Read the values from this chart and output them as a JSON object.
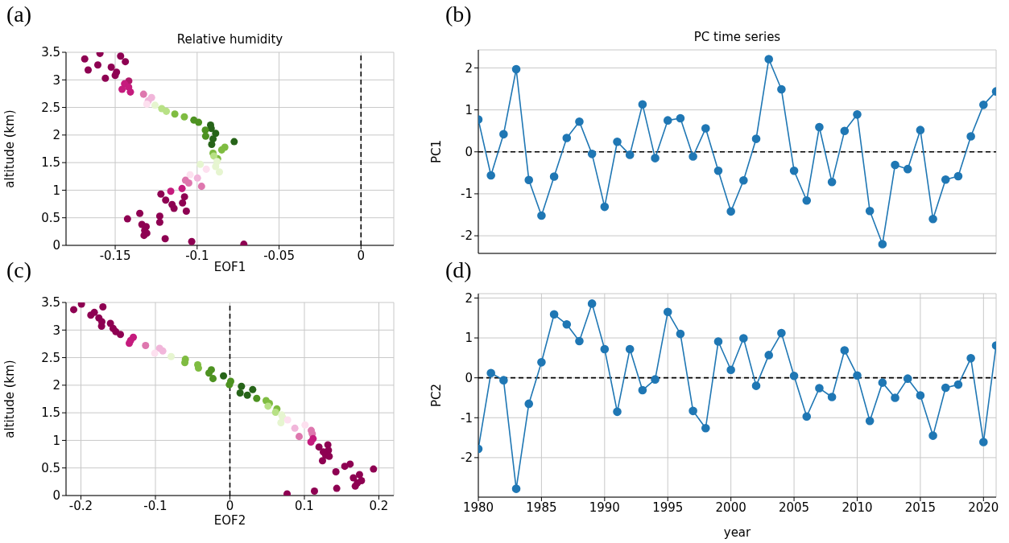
{
  "chart_data": [
    {
      "type": "scatter",
      "title": "Relative humidity",
      "xlabel": "EOF1",
      "ylabel": "altitude (km)",
      "annotations": [
        "(a)"
      ],
      "xlim": [
        -0.18,
        0.02
      ],
      "xticks": [
        -0.15,
        -0.1,
        -0.05,
        0
      ],
      "ylim": [
        0,
        3.5
      ],
      "yticks": [
        0,
        0.5,
        1,
        1.5,
        2,
        2.5,
        3,
        3.5
      ],
      "grid": true,
      "marker": "circle",
      "ref_lines": [
        {
          "axis": "x",
          "value": 0,
          "color": "#000000",
          "line_style": "dashed"
        }
      ],
      "x": [
        -0.1686,
        -0.1593,
        -0.1467,
        -0.1438,
        -0.1606,
        -0.1665,
        -0.1524,
        -0.1492,
        -0.15,
        -0.156,
        -0.1417,
        -0.1443,
        -0.1418,
        -0.1458,
        -0.1407,
        -0.1327,
        -0.1278,
        -0.1298,
        -0.1307,
        -0.1257,
        -0.1216,
        -0.1188,
        -0.1136,
        -0.1078,
        -0.102,
        -0.0991,
        -0.0918,
        -0.0914,
        -0.095,
        -0.0887,
        -0.0948,
        -0.0903,
        -0.0911,
        -0.0774,
        -0.0831,
        -0.085,
        -0.0903,
        -0.0875,
        -0.0898,
        -0.0878,
        -0.0981,
        -0.0887,
        -0.0864,
        -0.0944,
        -0.1043,
        -0.0998,
        -0.1071,
        -0.1051,
        -0.0973,
        -0.1092,
        -0.1161,
        -0.1221,
        -0.1077,
        -0.1192,
        -0.1153,
        -0.1141,
        -0.1089,
        -0.1066,
        -0.135,
        -0.1425,
        -0.1228,
        -0.1228,
        -0.1337,
        -0.1311,
        -0.132,
        -0.1307,
        -0.1324,
        -0.1195,
        -0.1033,
        -0.0715
      ],
      "values": [
        3.38,
        3.48,
        3.43,
        3.33,
        3.27,
        3.18,
        3.23,
        3.14,
        3.08,
        3.03,
        2.98,
        2.93,
        2.87,
        2.83,
        2.78,
        2.74,
        2.68,
        2.62,
        2.56,
        2.54,
        2.48,
        2.43,
        2.38,
        2.33,
        2.27,
        2.23,
        2.18,
        2.12,
        2.09,
        2.03,
        1.98,
        1.93,
        1.83,
        1.88,
        1.78,
        1.73,
        1.67,
        1.57,
        1.62,
        1.52,
        1.47,
        1.43,
        1.33,
        1.38,
        1.28,
        1.22,
        1.18,
        1.13,
        1.07,
        1.03,
        0.98,
        0.93,
        0.88,
        0.82,
        0.74,
        0.67,
        0.77,
        0.62,
        0.58,
        0.48,
        0.53,
        0.42,
        0.38,
        0.34,
        0.27,
        0.22,
        0.18,
        0.12,
        0.07,
        0.02
      ],
      "colors": [
        "#8e0152",
        "#8e0152",
        "#8e0152",
        "#8e0152",
        "#8e0152",
        "#8e0152",
        "#8e0152",
        "#8e0152",
        "#8e0152",
        "#8e0152",
        "#b0186a",
        "#c51b7d",
        "#c51b7d",
        "#c51b7d",
        "#c51b7d",
        "#de77ae",
        "#f1b6da",
        "#f1b6da",
        "#fde0ef",
        "#e6f5d0",
        "#b8e186",
        "#b8e186",
        "#7fbc41",
        "#7fbc41",
        "#4d9221",
        "#4d9221",
        "#276419",
        "#276419",
        "#4d9221",
        "#276419",
        "#4d9221",
        "#276419",
        "#276419",
        "#276419",
        "#7fbc41",
        "#7fbc41",
        "#7fbc41",
        "#7fbc41",
        "#b8e186",
        "#e6f5d0",
        "#e6f5d0",
        "#e6f5d0",
        "#e6f5d0",
        "#fde0ef",
        "#fde0ef",
        "#f1b6da",
        "#de77ae",
        "#de77ae",
        "#de77ae",
        "#c51b7d",
        "#c51b7d",
        "#8e0152",
        "#8e0152",
        "#8e0152",
        "#8e0152",
        "#8e0152",
        "#8e0152",
        "#8e0152",
        "#8e0152",
        "#8e0152",
        "#8e0152",
        "#8e0152",
        "#8e0152",
        "#8e0152",
        "#8e0152",
        "#8e0152",
        "#8e0152",
        "#8e0152",
        "#8e0152",
        "#8e0152"
      ]
    },
    {
      "type": "line",
      "title": "PC time series",
      "ylabel": "PC1",
      "annotations": [
        "(b)"
      ],
      "xlim": [
        1980,
        2021
      ],
      "xticks": [
        1980,
        1985,
        1990,
        1995,
        2000,
        2005,
        2010,
        2015,
        2020
      ],
      "ylim": [
        -2.42,
        2.43
      ],
      "yticks": [
        -2,
        -1,
        0,
        1,
        2
      ],
      "tick_labels": "y",
      "grid": true,
      "marker": "circle",
      "line_style": "solid",
      "color": "#1f77b4",
      "ref_lines": [
        {
          "axis": "y",
          "value": 0,
          "color": "#000000",
          "line_style": "dashed"
        }
      ],
      "x": [
        1980,
        1981,
        1982,
        1983,
        1984,
        1985,
        1986,
        1987,
        1988,
        1989,
        1990,
        1991,
        1992,
        1993,
        1994,
        1995,
        1996,
        1997,
        1998,
        1999,
        2000,
        2001,
        2002,
        2003,
        2004,
        2005,
        2006,
        2007,
        2008,
        2009,
        2010,
        2011,
        2012,
        2013,
        2014,
        2015,
        2016,
        2017,
        2018,
        2019,
        2020,
        2021
      ],
      "values": [
        0.77,
        -0.56,
        0.42,
        1.97,
        -0.67,
        -1.52,
        -0.59,
        0.33,
        0.72,
        -0.05,
        -1.31,
        0.24,
        -0.07,
        1.13,
        -0.15,
        0.75,
        0.8,
        -0.11,
        0.56,
        -0.45,
        -1.42,
        -0.68,
        0.31,
        2.21,
        1.49,
        -0.45,
        -1.16,
        0.59,
        -0.72,
        0.5,
        0.89,
        -1.41,
        -2.2,
        -0.31,
        -0.41,
        0.52,
        -1.6,
        -0.66,
        -0.58,
        0.37,
        1.12,
        1.44
      ]
    },
    {
      "type": "scatter",
      "xlabel": "EOF2",
      "ylabel": "altitude (km)",
      "annotations": [
        "(c)"
      ],
      "xlim": [
        -0.22,
        0.22
      ],
      "xticks": [
        -0.2,
        -0.1,
        0,
        0.1,
        0.2
      ],
      "ylim": [
        0,
        3.5
      ],
      "yticks": [
        0,
        0.5,
        1,
        1.5,
        2,
        2.5,
        3,
        3.5
      ],
      "grid": true,
      "marker": "circle",
      "ref_lines": [
        {
          "axis": "x",
          "value": 0,
          "color": "#000000",
          "line_style": "dashed"
        }
      ],
      "x": [
        -0.2097,
        -0.1993,
        -0.1705,
        -0.1867,
        -0.182,
        -0.1759,
        -0.1719,
        -0.1723,
        -0.1604,
        -0.1568,
        -0.1532,
        -0.147,
        -0.1297,
        -0.1333,
        -0.1351,
        -0.1132,
        -0.0944,
        -0.0901,
        -0.1009,
        -0.0789,
        -0.0598,
        -0.0605,
        -0.0432,
        -0.0422,
        -0.0249,
        -0.0281,
        -0.0227,
        -0.0086,
        0.0011,
        -0.0007,
        0.0155,
        0.0306,
        0.0137,
        0.0234,
        0.036,
        0.0486,
        0.053,
        0.0512,
        0.0631,
        0.0613,
        0.0695,
        0.071,
        0.0685,
        0.0775,
        0.1009,
        0.0872,
        0.1092,
        0.1106,
        0.093,
        0.1117,
        0.1088,
        0.1315,
        0.1196,
        0.1323,
        0.1286,
        0.1333,
        0.1254,
        0.1243,
        0.1614,
        0.1423,
        0.1542,
        0.1928,
        0.174,
        0.1658,
        0.1766,
        0.1712,
        0.1683,
        0.1434,
        0.1135,
        0.0768
      ],
      "values": [
        3.37,
        3.47,
        3.42,
        3.27,
        3.32,
        3.22,
        3.15,
        3.07,
        3.12,
        3.03,
        2.97,
        2.92,
        2.87,
        2.81,
        2.76,
        2.72,
        2.67,
        2.62,
        2.58,
        2.52,
        2.47,
        2.41,
        2.37,
        2.31,
        2.28,
        2.22,
        2.12,
        2.17,
        2.07,
        2.01,
        1.98,
        1.92,
        1.86,
        1.82,
        1.76,
        1.72,
        1.67,
        1.62,
        1.57,
        1.51,
        1.46,
        1.41,
        1.32,
        1.37,
        1.28,
        1.22,
        1.18,
        1.12,
        1.07,
        1.03,
        0.97,
        0.92,
        0.88,
        0.82,
        0.73,
        0.71,
        0.79,
        0.63,
        0.57,
        0.43,
        0.53,
        0.48,
        0.38,
        0.32,
        0.27,
        0.23,
        0.17,
        0.13,
        0.08,
        0.03
      ],
      "colors": [
        "#8e0152",
        "#8e0152",
        "#8e0152",
        "#8e0152",
        "#8e0152",
        "#8e0152",
        "#8e0152",
        "#8e0152",
        "#8e0152",
        "#8e0152",
        "#8e0152",
        "#8e0152",
        "#c51b7d",
        "#c51b7d",
        "#c51b7d",
        "#de77ae",
        "#f1b6da",
        "#f1b6da",
        "#fde0ef",
        "#e6f5d0",
        "#7fbc41",
        "#7fbc41",
        "#7fbc41",
        "#7fbc41",
        "#4d9221",
        "#4d9221",
        "#4d9221",
        "#276419",
        "#4d9221",
        "#4d9221",
        "#276419",
        "#276419",
        "#276419",
        "#276419",
        "#4d9221",
        "#7fbc41",
        "#7fbc41",
        "#b8e186",
        "#7fbc41",
        "#b8e186",
        "#e6f5d0",
        "#e6f5d0",
        "#e6f5d0",
        "#fde0ef",
        "#fde0ef",
        "#f1b6da",
        "#de77ae",
        "#de77ae",
        "#de77ae",
        "#c51b7d",
        "#c51b7d",
        "#8e0152",
        "#8e0152",
        "#8e0152",
        "#8e0152",
        "#8e0152",
        "#8e0152",
        "#8e0152",
        "#8e0152",
        "#8e0152",
        "#8e0152",
        "#8e0152",
        "#8e0152",
        "#8e0152",
        "#8e0152",
        "#8e0152",
        "#8e0152",
        "#8e0152",
        "#8e0152",
        "#8e0152"
      ]
    },
    {
      "type": "line",
      "xlabel": "year",
      "ylabel": "PC2",
      "annotations": [
        "(d)"
      ],
      "xlim": [
        1980,
        2021
      ],
      "xticks": [
        1980,
        1985,
        1990,
        1995,
        2000,
        2005,
        2010,
        2015,
        2020
      ],
      "ylim": [
        -2.99,
        2.11
      ],
      "yticks": [
        -2,
        -1,
        0,
        1,
        2
      ],
      "grid": true,
      "marker": "circle",
      "line_style": "solid",
      "color": "#1f77b4",
      "ref_lines": [
        {
          "axis": "y",
          "value": 0,
          "color": "#000000",
          "line_style": "dashed"
        }
      ],
      "x": [
        1980,
        1981,
        1982,
        1983,
        1984,
        1985,
        1986,
        1987,
        1988,
        1989,
        1990,
        1991,
        1992,
        1993,
        1994,
        1995,
        1996,
        1997,
        1998,
        1999,
        2000,
        2001,
        2002,
        2003,
        2004,
        2005,
        2006,
        2007,
        2008,
        2009,
        2010,
        2011,
        2012,
        2013,
        2014,
        2015,
        2016,
        2017,
        2018,
        2019,
        2020,
        2021
      ],
      "values": [
        -1.78,
        0.12,
        -0.06,
        -2.78,
        -0.65,
        0.39,
        1.59,
        1.34,
        0.92,
        1.86,
        0.72,
        -0.85,
        0.72,
        -0.31,
        -0.04,
        1.65,
        1.1,
        -0.83,
        -1.26,
        0.91,
        0.2,
        0.99,
        -0.2,
        0.57,
        1.12,
        0.05,
        -0.97,
        -0.26,
        -0.48,
        0.69,
        0.06,
        -1.08,
        -0.12,
        -0.5,
        -0.02,
        -0.44,
        -1.45,
        -0.25,
        -0.17,
        0.49,
        -1.61,
        0.81
      ]
    }
  ]
}
